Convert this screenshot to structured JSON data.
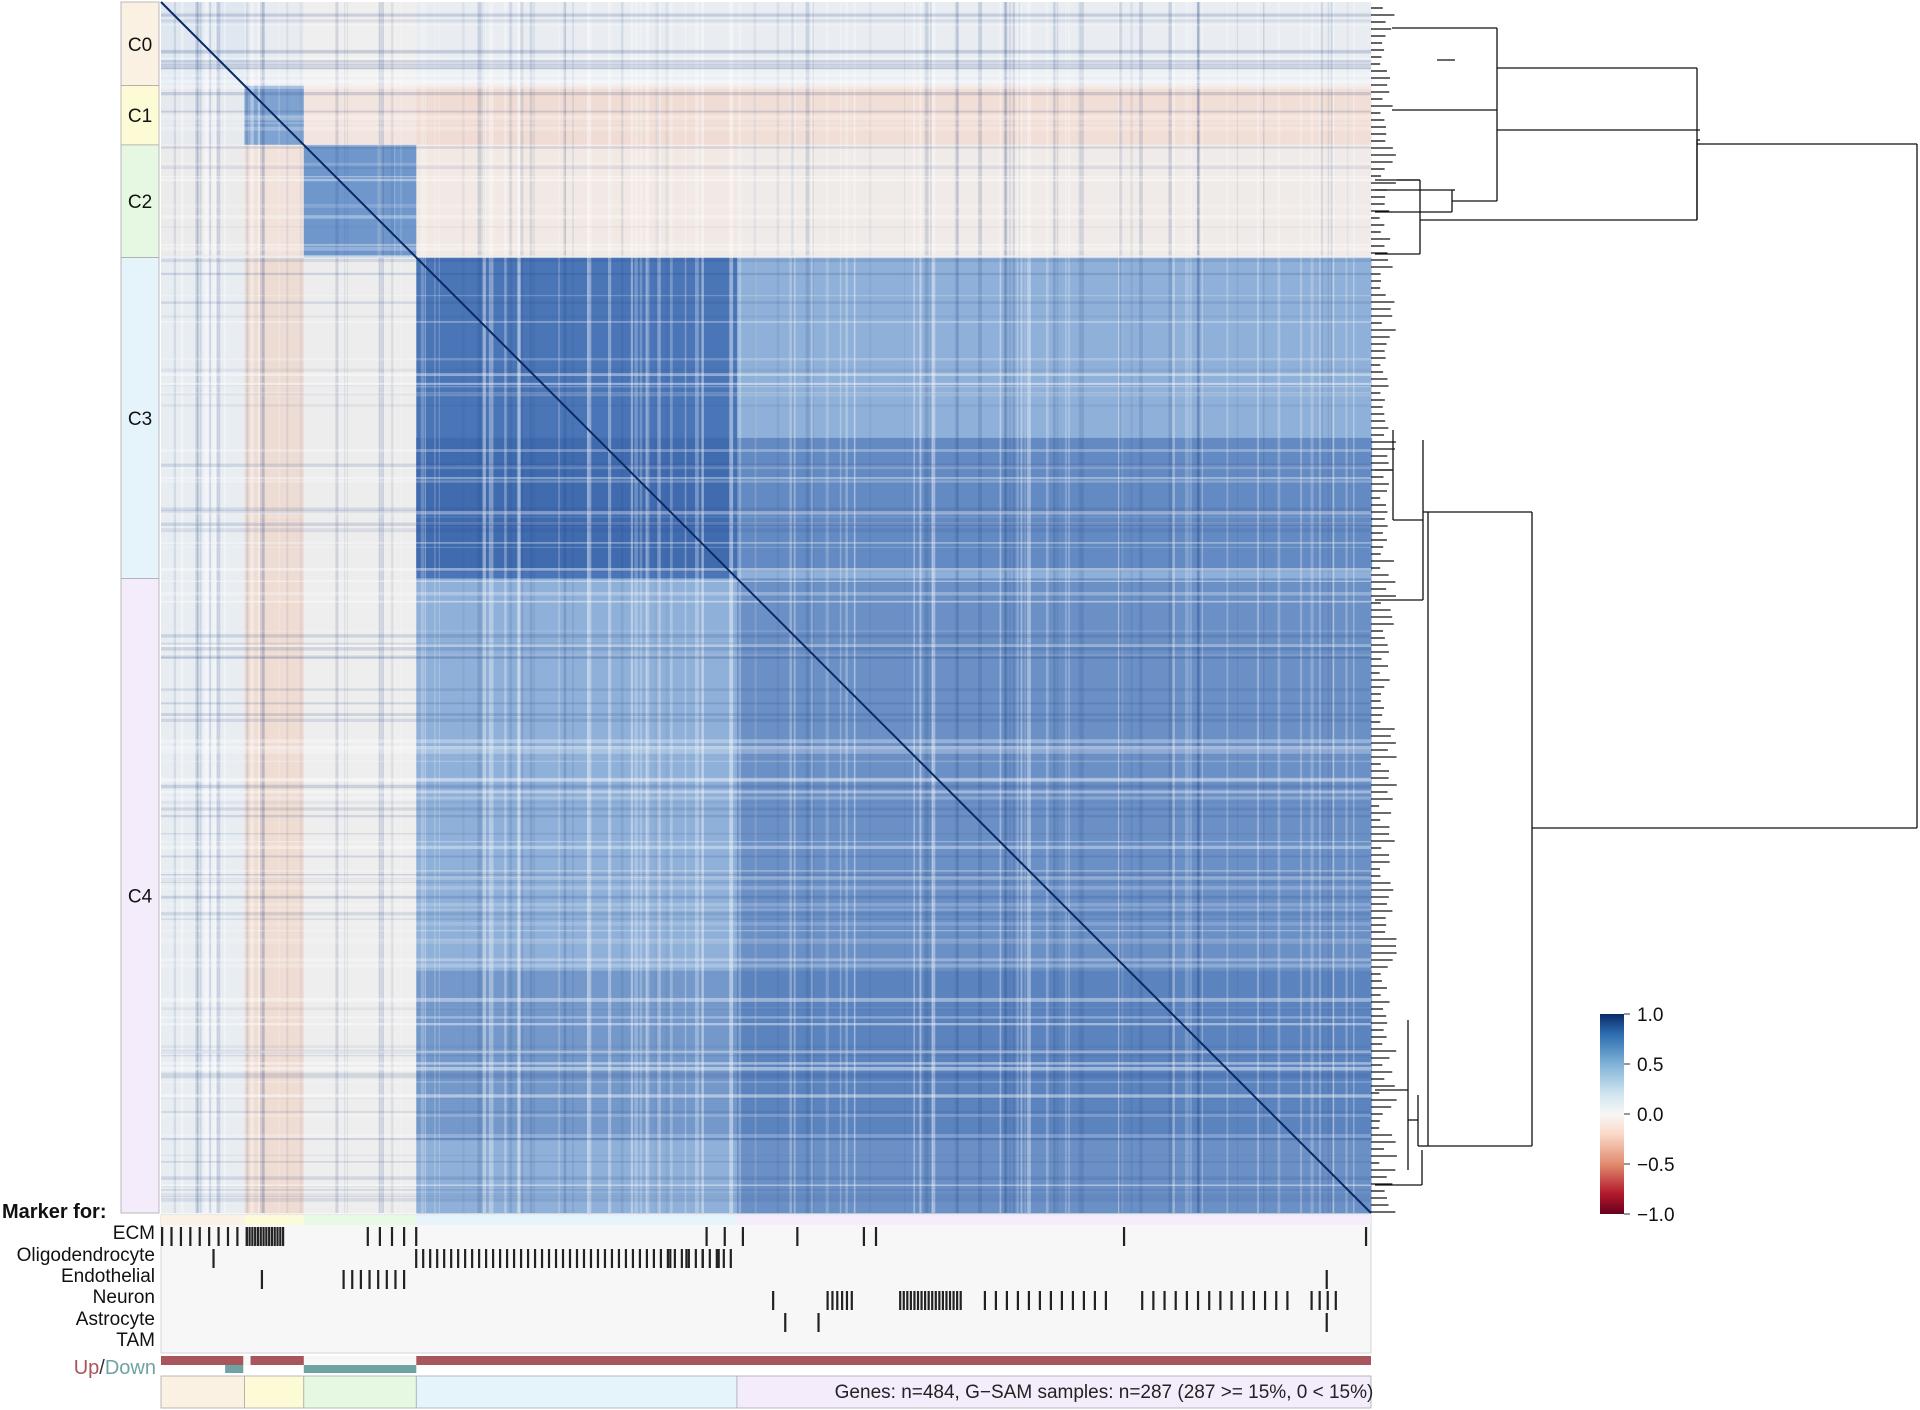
{
  "chart_data": {
    "type": "heatmap",
    "title": "",
    "clusters": [
      {
        "name": "C0",
        "color": "#fbf1e2"
      },
      {
        "name": "C1",
        "color": "#fcfbd5"
      },
      {
        "name": "C2",
        "color": "#e6f8e2"
      },
      {
        "name": "C3",
        "color": "#e5f3fb"
      },
      {
        "name": "C4",
        "color": "#f4ecfa"
      }
    ],
    "colorbar": {
      "ticks": [
        "1.0",
        "0.5",
        "0.0",
        "−0.5",
        "−1.0"
      ],
      "values": [
        1.0,
        0.5,
        0.0,
        -0.5,
        -1.0
      ],
      "range": [
        -1.0,
        1.0
      ],
      "colors": [
        "#67001f",
        "#b2182b",
        "#d6604d",
        "#f4a582",
        "#fddbc7",
        "#f7f7f7",
        "#d1e5f0",
        "#92c5de",
        "#4393c3",
        "#2166ac",
        "#053061"
      ]
    },
    "marker_section_title": "Marker for:",
    "marker_rows": [
      "ECM",
      "Oligodendrocyte",
      "Endothelial",
      "Neuron",
      "Astrocyte",
      "TAM"
    ],
    "updown": {
      "up": "Up",
      "sep": "/",
      "down": "Down",
      "up_color": "#a8555b",
      "down_color": "#6fa3a3"
    },
    "footer_note": "Genes: n=484, G−SAM samples: n=287 (287 >= 15%, 0 < 15%)",
    "n_genes": 484,
    "n_samples": 287
  }
}
